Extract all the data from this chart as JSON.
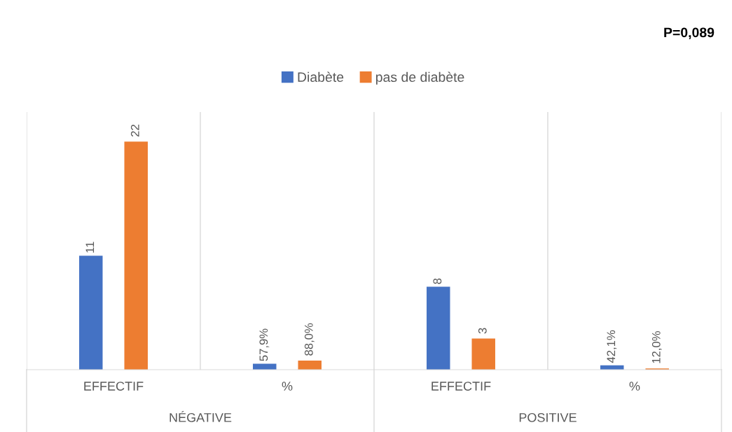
{
  "chart_data": {
    "type": "bar",
    "categories": [
      "EFFECTIF",
      "%",
      "EFFECTIF",
      "%"
    ],
    "series": [
      {
        "name": "Diabète",
        "color": "#4472c4",
        "values": [
          11,
          0.579,
          8,
          0.421
        ],
        "value_labels": [
          "11",
          "57,9%",
          "8",
          "42,1%"
        ]
      },
      {
        "name": "pas de diabète",
        "color": "#ed7d31",
        "values": [
          22,
          0.88,
          3,
          0.12
        ],
        "value_labels": [
          "22",
          "88,0%",
          "3",
          "12,0%"
        ]
      }
    ],
    "annotations": [
      "NÉGATIVE",
      "POSITIVE",
      "P=0,089"
    ],
    "legend": "top",
    "grid": false
  }
}
